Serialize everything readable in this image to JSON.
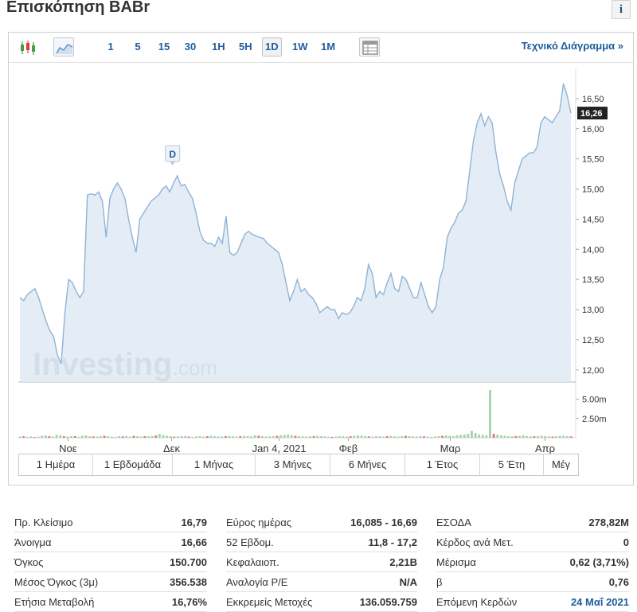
{
  "header": {
    "title": "Επισκόπηση BABr",
    "info_icon": "i"
  },
  "toolbar": {
    "icons": [
      "candlestick-chart-icon",
      "area-chart-icon",
      "table-icon"
    ],
    "periods": [
      "1",
      "5",
      "15",
      "30",
      "1H",
      "5H",
      "1D",
      "1W",
      "1M"
    ],
    "active_period": "1D",
    "technical_link": "Τεχνικό Διάγραμμα »"
  },
  "chart_data": {
    "type": "area",
    "title": "",
    "y_ticks": [
      "16,50",
      "16,00",
      "15,50",
      "15,00",
      "14,50",
      "14,00",
      "13,50",
      "13,00",
      "12,50",
      "12,00"
    ],
    "ylim": [
      11.8,
      17.0
    ],
    "x_ticks": [
      "Νοε",
      "Δεκ",
      "Jan 4, 2021",
      "Φεβ",
      "Μαρ",
      "Απρ"
    ],
    "last_price_label": "16,26",
    "last_price": 16.26,
    "event_marker": "D",
    "watermark": {
      "brand": "Investing",
      "suffix": ".com"
    },
    "volume_ticks": [
      "5.00m",
      "2.50m"
    ],
    "volume_max": 6.2,
    "colors": {
      "line": "#8fb3d6",
      "fill": "#dfeaf4",
      "last_price_bg": "#222222",
      "vol_up": "#9fd3a8",
      "vol_down": "#e57373"
    },
    "price_series": [
      13.2,
      13.15,
      13.25,
      13.3,
      13.35,
      13.2,
      13.0,
      12.8,
      12.65,
      12.55,
      12.25,
      12.1,
      12.95,
      13.5,
      13.45,
      13.3,
      13.2,
      13.3,
      14.9,
      14.92,
      14.9,
      14.95,
      14.8,
      14.2,
      14.85,
      15.0,
      15.1,
      15.0,
      14.85,
      14.5,
      14.2,
      13.95,
      14.5,
      14.6,
      14.7,
      14.8,
      14.85,
      14.9,
      15.0,
      15.05,
      14.95,
      15.1,
      15.22,
      15.05,
      15.08,
      14.95,
      14.85,
      14.6,
      14.3,
      14.15,
      14.1,
      14.1,
      14.05,
      14.2,
      14.1,
      14.55,
      13.95,
      13.9,
      13.95,
      14.1,
      14.25,
      14.3,
      14.25,
      14.22,
      14.2,
      14.18,
      14.1,
      14.05,
      14.0,
      13.95,
      13.75,
      13.45,
      13.15,
      13.3,
      13.5,
      13.3,
      13.35,
      13.25,
      13.2,
      13.1,
      12.95,
      13.0,
      13.05,
      13.0,
      13.0,
      12.85,
      12.95,
      12.92,
      12.95,
      13.05,
      13.2,
      13.15,
      13.35,
      13.75,
      13.6,
      13.2,
      13.3,
      13.25,
      13.45,
      13.6,
      13.35,
      13.3,
      13.55,
      13.5,
      13.35,
      13.2,
      13.2,
      13.45,
      13.25,
      13.05,
      12.95,
      13.05,
      13.5,
      13.7,
      14.2,
      14.35,
      14.45,
      14.6,
      14.65,
      14.8,
      15.3,
      15.8,
      16.1,
      16.25,
      16.05,
      16.2,
      16.1,
      15.6,
      15.25,
      15.05,
      14.8,
      14.65,
      15.1,
      15.3,
      15.5,
      15.55,
      15.6,
      15.6,
      15.7,
      16.1,
      16.2,
      16.15,
      16.1,
      16.2,
      16.3,
      16.75,
      16.55,
      16.26
    ],
    "volume_series": [
      0.15,
      0.2,
      0.12,
      0.18,
      0.1,
      0.15,
      0.25,
      0.3,
      0.2,
      0.15,
      0.35,
      0.3,
      0.2,
      0.15,
      0.2,
      0.22,
      0.12,
      0.25,
      0.3,
      0.2,
      0.18,
      0.15,
      0.2,
      0.25,
      0.2,
      0.15,
      0.12,
      0.2,
      0.18,
      0.22,
      0.15,
      0.25,
      0.2,
      0.15,
      0.2,
      0.18,
      0.22,
      0.3,
      0.5,
      0.35,
      0.25,
      0.2,
      0.15,
      0.18,
      0.2,
      0.22,
      0.15,
      0.12,
      0.18,
      0.2,
      0.15,
      0.2,
      0.25,
      0.2,
      0.18,
      0.15,
      0.2,
      0.22,
      0.18,
      0.15,
      0.2,
      0.25,
      0.2,
      0.18,
      0.3,
      0.25,
      0.2,
      0.15,
      0.18,
      0.2,
      0.25,
      0.3,
      0.35,
      0.4,
      0.3,
      0.25,
      0.2,
      0.18,
      0.15,
      0.2,
      0.22,
      0.25,
      0.2,
      0.18,
      0.15,
      0.12,
      0.15,
      0.2,
      0.18,
      0.15,
      0.2,
      0.25,
      0.3,
      0.25,
      0.2,
      0.18,
      0.15,
      0.2,
      0.18,
      0.15,
      0.2,
      0.22,
      0.18,
      0.15,
      0.2,
      0.25,
      0.2,
      0.18,
      0.15,
      0.2,
      0.18,
      0.15,
      0.12,
      0.18,
      0.2,
      0.25,
      0.3,
      0.25,
      0.2,
      0.3,
      0.35,
      0.4,
      0.5,
      0.9,
      0.6,
      0.4,
      0.35,
      0.3,
      6.2,
      0.5,
      0.4,
      0.3,
      0.25,
      0.2,
      0.18,
      0.22,
      0.25,
      0.3,
      0.2,
      0.18,
      0.2,
      0.22,
      0.25,
      0.2,
      0.18,
      0.15,
      0.2,
      0.22,
      0.25,
      0.2,
      0.18
    ],
    "volume_down_indices": [
      1,
      4,
      8,
      12,
      15,
      20,
      23,
      28,
      31,
      34,
      37,
      42,
      46,
      51,
      56,
      60,
      65,
      70,
      75,
      80,
      85,
      90,
      95,
      100,
      105,
      110,
      115,
      129,
      135,
      140,
      145,
      150
    ]
  },
  "range_tabs": [
    "1 Ημέρα",
    "1 Εβδομάδα",
    "1 Μήνας",
    "3 Μήνες",
    "6 Μήνες",
    "1 Έτος",
    "5 Έτη",
    "Μέγ"
  ],
  "stats": {
    "col1": [
      {
        "label": "Πρ. Κλείσιμο",
        "value": "16,79"
      },
      {
        "label": "Άνοιγμα",
        "value": "16,66"
      },
      {
        "label": "Όγκος",
        "value": "150.700"
      },
      {
        "label": "Μέσος Όγκος (3μ)",
        "value": "356.538"
      },
      {
        "label": "Ετήσια Μεταβολή",
        "value": "16,76%"
      }
    ],
    "col2": [
      {
        "label": "Εύρος ημέρας",
        "value": "16,085 - 16,69"
      },
      {
        "label": "52 Εβδομ.",
        "value": "11,8 - 17,2"
      },
      {
        "label": "Κεφαλαιοπ.",
        "value": "2,21B"
      },
      {
        "label": "Αναλογία P/E",
        "value": "N/A"
      },
      {
        "label": "Εκκρεμείς Μετοχές",
        "value": "136.059.759"
      }
    ],
    "col3": [
      {
        "label": "ΕΣΟΔΑ",
        "value": "278,82M"
      },
      {
        "label": "Κέρδος ανά Μετ.",
        "value": "0"
      },
      {
        "label": "Μέρισμα",
        "value": "0,62 (3,71%)"
      },
      {
        "label": "β",
        "value": "0,76"
      },
      {
        "label": "Επόμενη Κερδών",
        "value": "24 Μαΐ 2021",
        "link": true
      }
    ]
  }
}
